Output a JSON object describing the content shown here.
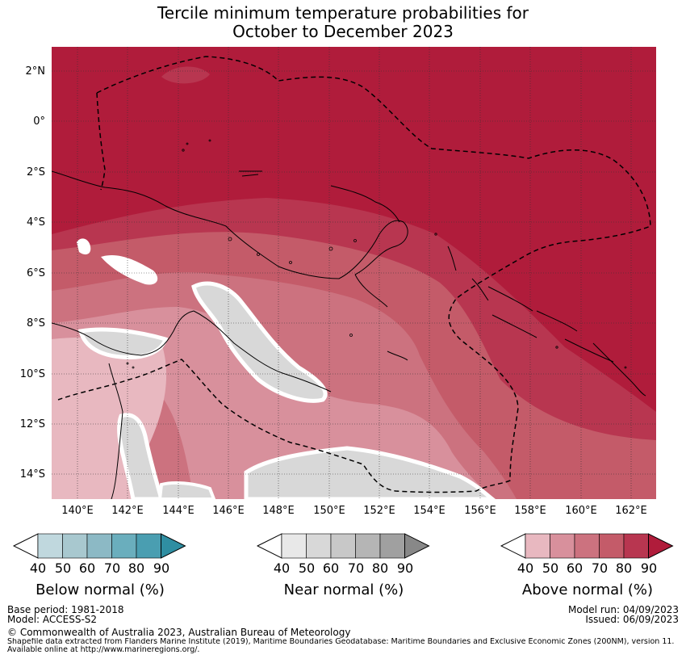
{
  "title_line1": "Tercile minimum temperature probabilities for",
  "title_line2": "October to December 2023",
  "lat_labels": [
    "2°N",
    "0°",
    "2°S",
    "4°S",
    "6°S",
    "8°S",
    "10°S",
    "12°S",
    "14°S"
  ],
  "lon_labels": [
    "140°E",
    "142°E",
    "144°E",
    "146°E",
    "148°E",
    "150°E",
    "152°E",
    "154°E",
    "156°E",
    "158°E",
    "160°E",
    "162°E"
  ],
  "colorbars": [
    {
      "title": "Below normal (%)",
      "ticks": [
        "40",
        "50",
        "60",
        "70",
        "80",
        "90"
      ],
      "colors": [
        "#c0d8de",
        "#a8c8cf",
        "#8cb9c5",
        "#6aaebd",
        "#4a9eb1",
        "#2f8ea2"
      ]
    },
    {
      "title": "Near normal (%)",
      "ticks": [
        "40",
        "50",
        "60",
        "70",
        "80",
        "90"
      ],
      "colors": [
        "#e8e8e8",
        "#d8d8d8",
        "#c8c8c8",
        "#b5b5b5",
        "#a0a0a0",
        "#888888"
      ]
    },
    {
      "title": "Above normal (%)",
      "ticks": [
        "40",
        "50",
        "60",
        "70",
        "80",
        "90"
      ],
      "colors": [
        "#e8b8c0",
        "#d8909c",
        "#cc727f",
        "#c45b69",
        "#b83650",
        "#b01c3b"
      ]
    }
  ],
  "base_period": "Base period: 1981-2018",
  "model": "Model: ACCESS-S2",
  "model_run": "Model run: 04/09/2023",
  "issued": "Issued: 06/09/2023",
  "copyright": "© Commonwealth of Australia 2023, Australian Bureau of Meteorology",
  "shapefile_line1": "Shapefile data extracted from Flanders Marine Institute (2019), Maritime Boundaries Geodatabase: Maritime Boundaries and Exclusive Economic Zones (200NM), version 11.",
  "shapefile_line2": "Available online at http://www.marineregions.org/."
}
